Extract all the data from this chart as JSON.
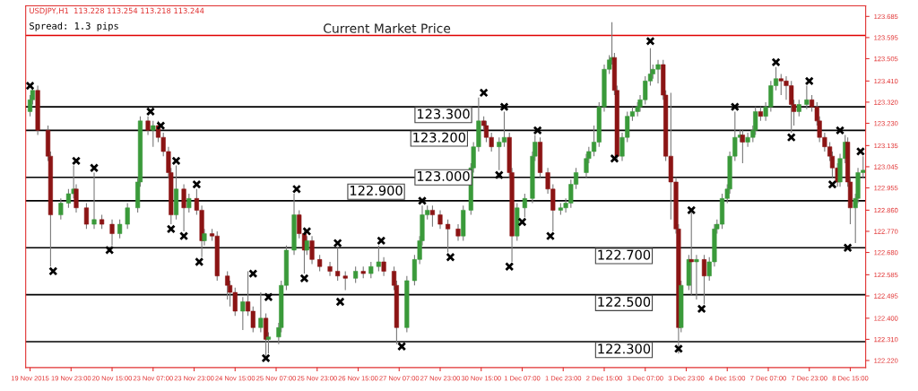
{
  "chart_data": {
    "type": "candlestick",
    "title": "USDJPY,H1  113.228 113.254 113.218 113.244",
    "subtitle": "Spread: 1.3 pips",
    "categories": [
      "19 Nov 2015",
      null,
      null,
      null,
      null,
      null,
      null,
      null,
      null,
      null,
      null,
      null,
      null,
      null,
      null,
      null,
      "19 Nov 23:00",
      null,
      null,
      null,
      null,
      null,
      null,
      null,
      null,
      null,
      null,
      null,
      null,
      null,
      null,
      null,
      "20 Nov 15:00",
      null,
      null,
      null,
      null,
      null,
      null,
      null,
      null,
      null,
      null,
      null,
      null,
      null,
      null,
      null,
      "23 Nov 07:00",
      null,
      null,
      null,
      null,
      null,
      null,
      null,
      null,
      null,
      null,
      null,
      null,
      null,
      null,
      null,
      "23 Nov 23:00",
      null,
      null,
      null,
      null,
      null,
      null,
      null,
      null,
      null,
      null,
      null,
      null,
      null,
      null,
      null,
      "24 Nov 15:00",
      null,
      null,
      null,
      null,
      null,
      null,
      null,
      null,
      null,
      null,
      null,
      null,
      null,
      null,
      null,
      "25 Nov 07:00",
      null,
      null,
      null,
      null,
      null,
      null,
      null,
      null,
      null,
      null,
      null,
      null,
      null,
      null,
      null,
      "25 Nov 23:00",
      null,
      null,
      null,
      null,
      null,
      null,
      null,
      null,
      null,
      null,
      null,
      null,
      null,
      null,
      null,
      "26 Nov 15:00",
      null,
      null,
      null,
      null,
      null,
      null,
      null,
      null,
      null,
      null,
      null,
      null,
      null,
      null,
      null,
      "27 Nov 07:00",
      null,
      null,
      null,
      null,
      null,
      null,
      null,
      null,
      null,
      null,
      null,
      null,
      null,
      null,
      null,
      "27 Nov 23:00",
      null,
      null,
      null,
      null,
      null,
      null,
      null,
      null,
      null,
      null,
      null,
      null,
      null,
      null,
      null,
      "30 Nov 15:00",
      null,
      null,
      null,
      null,
      null,
      null,
      null,
      null,
      null,
      null,
      null,
      null,
      null,
      null,
      null,
      "1 Dec 07:00",
      null,
      null,
      null,
      null,
      null,
      null,
      null,
      null,
      null,
      null,
      null,
      null,
      null,
      null,
      null,
      "1 Dec 23:00",
      null,
      null,
      null,
      null,
      null,
      null,
      null,
      null,
      null,
      null,
      null,
      null,
      null,
      null,
      null,
      "2 Dec 15:00",
      null,
      null,
      null,
      null,
      null,
      null,
      null,
      null,
      null,
      null,
      null,
      null,
      null,
      null,
      null,
      "3 Dec 07:00",
      null,
      null,
      null,
      null,
      null,
      null,
      null,
      null,
      null,
      null,
      null,
      null,
      null,
      null,
      null,
      "3 Dec 23:00",
      null,
      null,
      null,
      null,
      null,
      null,
      null,
      null,
      null,
      null,
      null,
      null,
      null,
      null,
      null,
      "4 Dec 15:00",
      null,
      null,
      null,
      null,
      null,
      null,
      null,
      null,
      null,
      null,
      null,
      null,
      null,
      null,
      null,
      "7 Dec 07:00",
      null,
      null,
      null,
      null,
      null,
      null,
      null,
      null,
      null,
      null,
      null,
      null,
      null,
      null,
      null,
      "7 Dec 23:00",
      null,
      null,
      null,
      null,
      null,
      null,
      null,
      null,
      null,
      null,
      null,
      null,
      null,
      null,
      null,
      "8 Dec 15:00",
      null,
      null,
      null,
      null,
      null
    ],
    "ohlc": [
      [
        123.28,
        123.35,
        123.26,
        123.33
      ],
      [
        123.33,
        123.38,
        123.31,
        123.37
      ],
      null,
      [
        123.37,
        123.39,
        123.18,
        123.2
      ],
      null,
      null,
      null,
      [
        123.2,
        123.22,
        123.07,
        123.09
      ],
      [
        123.09,
        123.11,
        122.62,
        122.84
      ],
      null,
      null,
      null,
      [
        122.84,
        122.91,
        122.82,
        122.89
      ],
      null,
      null,
      [
        122.89,
        122.95,
        122.87,
        122.93
      ],
      null,
      [
        122.93,
        123.05,
        122.91,
        122.95
      ],
      [
        122.95,
        122.97,
        122.85,
        122.87
      ],
      null,
      null,
      null,
      [
        122.87,
        122.89,
        122.78,
        122.8
      ],
      null,
      null,
      [
        122.8,
        123.02,
        122.78,
        122.82
      ],
      null,
      null,
      [
        122.82,
        122.84,
        122.78,
        122.8
      ],
      null,
      null,
      null,
      [
        122.8,
        122.82,
        122.71,
        122.76
      ],
      null,
      null,
      [
        122.76,
        122.82,
        122.74,
        122.8
      ],
      null,
      null,
      [
        122.8,
        122.89,
        122.78,
        122.87
      ],
      null,
      null,
      null,
      [
        122.87,
        123.0,
        122.85,
        122.98
      ],
      [
        122.98,
        123.26,
        122.96,
        123.24
      ],
      null,
      null,
      [
        123.24,
        123.26,
        123.18,
        123.2
      ],
      null,
      [
        123.2,
        123.24,
        123.13,
        123.22
      ],
      null,
      [
        123.22,
        123.24,
        123.15,
        123.17
      ],
      null,
      [
        123.17,
        123.19,
        123.09,
        123.11
      ],
      null,
      [
        123.11,
        123.13,
        123.0,
        123.02
      ],
      [
        123.02,
        123.04,
        122.8,
        122.84
      ],
      null,
      [
        122.84,
        123.05,
        122.82,
        122.95
      ],
      null,
      null,
      [
        122.95,
        122.97,
        122.77,
        122.87
      ],
      null,
      [
        122.87,
        122.93,
        122.85,
        122.91
      ],
      null,
      null,
      [
        122.91,
        122.95,
        122.84,
        122.86
      ],
      null,
      [
        122.86,
        122.88,
        122.66,
        122.73
      ],
      [
        122.73,
        122.78,
        122.71,
        122.76
      ],
      null,
      null,
      [
        122.76,
        122.78,
        122.73,
        122.75
      ],
      null,
      [
        122.75,
        122.77,
        122.56,
        122.58
      ],
      null,
      null,
      null,
      [
        122.58,
        122.6,
        122.48,
        122.54
      ],
      [
        122.54,
        122.56,
        122.45,
        122.51
      ],
      null,
      [
        122.51,
        122.53,
        122.41,
        122.43
      ],
      null,
      null,
      [
        122.43,
        122.49,
        122.35,
        122.47
      ],
      null,
      [
        122.47,
        122.6,
        122.41,
        122.43
      ],
      null,
      [
        122.43,
        122.45,
        122.34,
        122.36
      ],
      null,
      null,
      [
        122.36,
        122.51,
        122.34,
        122.4
      ],
      null,
      [
        122.4,
        122.42,
        122.24,
        122.31
      ],
      [
        122.31,
        122.34,
        122.25,
        122.32
      ],
      null,
      null,
      null,
      [
        122.32,
        122.38,
        122.29,
        122.36
      ],
      [
        122.36,
        122.56,
        122.34,
        122.54
      ],
      null,
      [
        122.54,
        122.71,
        122.52,
        122.69
      ],
      null,
      null,
      [
        122.69,
        122.93,
        122.67,
        122.84
      ],
      null,
      [
        122.84,
        122.86,
        122.74,
        122.76
      ],
      null,
      [
        122.76,
        122.78,
        122.59,
        122.69
      ],
      [
        122.69,
        122.75,
        122.67,
        122.73
      ],
      null,
      [
        122.73,
        122.75,
        122.63,
        122.65
      ],
      null,
      null,
      [
        122.65,
        122.67,
        122.6,
        122.62
      ],
      null,
      null,
      null,
      [
        122.62,
        122.64,
        122.58,
        122.6
      ],
      null,
      null,
      [
        122.6,
        122.7,
        122.56,
        122.58
      ],
      null,
      null,
      [
        122.58,
        122.6,
        122.52,
        122.57
      ],
      null,
      null,
      null,
      [
        122.57,
        122.62,
        122.55,
        122.6
      ],
      null,
      null,
      [
        122.6,
        122.62,
        122.57,
        122.59
      ],
      null,
      null,
      [
        122.59,
        122.64,
        122.57,
        122.62
      ],
      null,
      null,
      [
        122.62,
        122.71,
        122.6,
        122.64
      ],
      null,
      [
        122.64,
        122.66,
        122.58,
        122.6
      ],
      null,
      null,
      null,
      [
        122.6,
        122.62,
        122.52,
        122.54
      ],
      [
        122.54,
        122.56,
        122.29,
        122.36
      ],
      null,
      null,
      null,
      [
        122.36,
        122.58,
        122.34,
        122.56
      ],
      null,
      null,
      [
        122.56,
        122.67,
        122.54,
        122.65
      ],
      null,
      [
        122.65,
        122.75,
        122.63,
        122.73
      ],
      [
        122.73,
        122.88,
        122.71,
        122.84
      ],
      null,
      [
        122.84,
        122.88,
        122.82,
        122.86
      ],
      null,
      [
        122.86,
        122.88,
        122.79,
        122.84
      ],
      null,
      null,
      [
        122.84,
        122.86,
        122.78,
        122.8
      ],
      null,
      null,
      [
        122.8,
        122.82,
        122.68,
        122.78
      ],
      null,
      null,
      null,
      [
        122.78,
        122.8,
        122.73,
        122.75
      ],
      null,
      [
        122.75,
        122.88,
        122.73,
        122.86
      ],
      null,
      null,
      [
        122.86,
        123.06,
        122.84,
        123.04
      ],
      [
        123.04,
        123.15,
        123.02,
        123.13
      ],
      null,
      [
        123.13,
        123.34,
        123.11,
        123.24
      ],
      null,
      [
        123.24,
        123.26,
        123.2,
        123.22
      ],
      [
        123.22,
        123.24,
        123.15,
        123.17
      ],
      null,
      [
        123.17,
        123.19,
        123.11,
        123.13
      ],
      null,
      null,
      [
        123.13,
        123.17,
        123.03,
        123.15
      ],
      null,
      [
        123.15,
        123.28,
        123.13,
        123.17
      ],
      null,
      [
        123.17,
        123.19,
        123.0,
        123.02
      ],
      [
        123.02,
        123.04,
        122.64,
        122.75
      ],
      null,
      [
        122.75,
        122.89,
        122.73,
        122.87
      ],
      null,
      null,
      [
        122.87,
        122.93,
        122.83,
        122.91
      ],
      null,
      null,
      [
        122.91,
        123.11,
        122.89,
        123.09
      ],
      [
        123.09,
        123.18,
        123.07,
        123.15
      ],
      null,
      [
        123.15,
        123.17,
        123.0,
        123.02
      ],
      null,
      null,
      [
        123.02,
        123.04,
        122.93,
        122.95
      ],
      null,
      [
        122.95,
        122.97,
        122.77,
        122.86
      ],
      null,
      null,
      [
        122.86,
        122.89,
        122.84,
        122.87
      ],
      null,
      [
        122.87,
        122.91,
        122.85,
        122.89
      ],
      null,
      [
        122.89,
        122.99,
        122.87,
        122.97
      ],
      null,
      [
        122.97,
        123.04,
        122.95,
        123.02
      ],
      null,
      null,
      null,
      [
        123.02,
        123.1,
        123.0,
        123.08
      ],
      [
        123.08,
        123.13,
        123.06,
        123.11
      ],
      null,
      [
        123.11,
        123.22,
        123.09,
        123.15
      ],
      null,
      [
        123.15,
        123.32,
        123.13,
        123.3
      ],
      null,
      [
        123.3,
        123.48,
        123.28,
        123.46
      ],
      null,
      [
        123.46,
        123.52,
        123.44,
        123.5
      ],
      [
        123.5,
        123.66,
        123.48,
        123.51
      ],
      [
        123.51,
        123.53,
        123.35,
        123.37
      ],
      [
        123.37,
        123.39,
        123.07,
        123.09
      ],
      null,
      [
        123.09,
        123.19,
        123.07,
        123.17
      ],
      null,
      [
        123.17,
        123.28,
        123.15,
        123.26
      ],
      null,
      [
        123.26,
        123.3,
        123.24,
        123.28
      ],
      null,
      [
        123.28,
        123.32,
        123.26,
        123.3
      ],
      [
        123.3,
        123.35,
        123.28,
        123.33
      ],
      null,
      [
        123.33,
        123.43,
        123.31,
        123.41
      ],
      null,
      [
        123.41,
        123.55,
        123.39,
        123.44
      ],
      [
        123.44,
        123.48,
        123.42,
        123.46
      ],
      null,
      [
        123.46,
        123.5,
        123.4,
        123.48
      ],
      null,
      [
        123.48,
        123.5,
        123.33,
        123.35
      ],
      [
        123.35,
        123.37,
        123.07,
        123.09
      ],
      null,
      [
        123.09,
        123.36,
        122.82,
        122.98
      ],
      null,
      [
        122.98,
        123.0,
        122.76,
        122.78
      ],
      [
        122.78,
        122.8,
        122.25,
        122.36
      ],
      [
        122.36,
        122.56,
        122.34,
        122.54
      ],
      null,
      null,
      [
        122.54,
        122.67,
        122.52,
        122.65
      ],
      [
        122.65,
        122.85,
        122.5,
        122.64
      ],
      null,
      [
        122.64,
        122.67,
        122.48,
        122.65
      ],
      null,
      null,
      [
        122.65,
        122.67,
        122.46,
        122.58
      ],
      null,
      [
        122.58,
        122.66,
        122.56,
        122.64
      ],
      null,
      [
        122.64,
        122.8,
        122.62,
        122.78
      ],
      [
        122.78,
        122.82,
        122.76,
        122.8
      ],
      null,
      [
        122.8,
        122.93,
        122.78,
        122.91
      ],
      null,
      [
        122.91,
        122.97,
        122.89,
        122.95
      ],
      [
        122.95,
        123.11,
        122.93,
        123.09
      ],
      null,
      [
        123.09,
        123.28,
        123.07,
        123.17
      ],
      null,
      [
        123.17,
        123.2,
        123.15,
        123.18
      ],
      [
        123.18,
        123.2,
        123.06,
        123.15
      ],
      null,
      [
        123.15,
        123.19,
        123.13,
        123.17
      ],
      null,
      [
        123.17,
        123.22,
        123.15,
        123.2
      ],
      [
        123.2,
        123.3,
        123.18,
        123.28
      ],
      null,
      [
        123.28,
        123.3,
        123.24,
        123.26
      ],
      null,
      [
        123.26,
        123.32,
        123.24,
        123.3
      ],
      null,
      [
        123.3,
        123.41,
        123.28,
        123.39
      ],
      null,
      [
        123.39,
        123.47,
        123.37,
        123.42
      ],
      null,
      [
        123.42,
        123.44,
        123.35,
        123.41
      ],
      null,
      [
        123.41,
        123.43,
        123.33,
        123.39
      ],
      null,
      [
        123.39,
        123.41,
        123.19,
        123.31
      ],
      [
        123.31,
        123.33,
        123.22,
        123.28
      ],
      null,
      [
        123.28,
        123.33,
        123.26,
        123.31
      ],
      null,
      null,
      [
        123.31,
        123.39,
        123.29,
        123.33
      ],
      null,
      [
        123.33,
        123.35,
        123.28,
        123.3
      ],
      null,
      [
        123.3,
        123.32,
        123.22,
        123.24
      ],
      [
        123.24,
        123.26,
        123.15,
        123.17
      ],
      null,
      [
        123.17,
        123.19,
        123.11,
        123.13
      ],
      null,
      [
        123.13,
        123.15,
        123.07,
        123.09
      ],
      [
        123.09,
        123.11,
        123.0,
        123.04
      ],
      null,
      [
        123.04,
        123.06,
        122.96,
        122.98
      ],
      [
        122.98,
        123.1,
        122.96,
        123.08
      ],
      null,
      [
        123.08,
        123.18,
        123.06,
        123.15
      ],
      [
        123.15,
        123.17,
        122.96,
        122.98
      ],
      [
        122.98,
        123.0,
        122.8,
        122.87
      ],
      null,
      [
        122.87,
        122.93,
        122.72,
        122.91
      ],
      [
        122.91,
        123.04,
        122.89,
        123.02
      ],
      null,
      [
        123.02,
        123.09,
        123.0,
        123.03
      ]
    ],
    "series": [
      {
        "type": "scatter",
        "marker": "cross",
        "color": "#000000",
        "values": [
          123.39,
          null,
          null,
          null,
          null,
          null,
          null,
          null,
          null,
          122.6,
          null,
          null,
          null,
          null,
          null,
          null,
          null,
          null,
          123.07,
          null,
          null,
          null,
          null,
          null,
          null,
          123.04,
          null,
          null,
          null,
          null,
          null,
          122.69,
          null,
          null,
          null,
          null,
          null,
          null,
          null,
          null,
          null,
          null,
          null,
          null,
          null,
          null,
          null,
          123.28,
          null,
          null,
          null,
          123.22,
          null,
          null,
          null,
          122.78,
          null,
          123.07,
          null,
          null,
          122.75,
          null,
          null,
          null,
          null,
          122.97,
          122.64,
          null,
          null,
          null,
          null,
          null,
          null,
          null,
          null,
          null,
          null,
          null,
          null,
          null,
          null,
          null,
          null,
          null,
          null,
          null,
          null,
          122.59,
          null,
          null,
          null,
          null,
          122.23,
          122.49,
          null,
          null,
          null,
          null,
          null,
          null,
          null,
          null,
          null,
          null,
          122.95,
          null,
          null,
          122.57,
          122.77,
          null,
          null,
          null,
          null,
          null,
          null,
          null,
          null,
          null,
          null,
          null,
          122.72,
          122.47,
          null,
          null,
          null,
          null,
          null,
          null,
          null,
          null,
          null,
          null,
          null,
          null,
          null,
          null,
          null,
          122.73,
          null,
          null,
          null,
          null,
          null,
          null,
          null,
          122.28,
          null,
          null,
          null,
          null,
          null,
          null,
          null,
          122.9,
          null,
          null,
          null,
          null,
          null,
          null,
          null,
          null,
          null,
          null,
          122.66,
          null,
          null,
          null,
          null,
          null,
          null,
          null,
          null,
          null,
          null,
          null,
          null,
          123.36,
          null,
          null,
          null,
          null,
          null,
          123.01,
          null,
          123.3,
          null,
          122.62,
          null,
          null,
          null,
          null,
          122.81,
          null,
          null,
          null,
          null,
          null,
          123.2,
          null,
          null,
          null,
          null,
          122.75,
          null,
          null,
          null,
          null,
          null,
          null,
          null,
          null,
          null,
          null,
          null,
          null,
          null,
          null,
          null,
          null,
          null,
          null,
          null,
          null,
          null,
          null,
          null,
          null,
          123.08,
          null,
          null,
          null,
          null,
          null,
          null,
          null,
          null,
          null,
          null,
          null,
          null,
          null,
          123.58,
          null,
          null,
          null,
          null,
          null,
          null,
          null,
          null,
          null,
          null,
          122.27,
          null,
          null,
          null,
          null,
          122.86,
          null,
          null,
          null,
          122.44,
          null,
          null,
          null,
          null,
          null,
          null,
          null,
          null,
          null,
          null,
          null,
          null,
          123.3,
          null,
          null,
          null,
          null,
          null,
          null,
          null,
          null,
          null,
          null,
          null,
          null,
          null,
          null,
          null,
          123.49,
          null,
          null,
          null,
          null,
          null,
          123.17,
          null,
          null,
          null,
          null,
          null,
          null,
          123.41,
          null,
          null,
          null,
          null,
          null,
          null,
          null,
          null,
          122.97,
          null,
          null,
          123.2,
          null,
          null,
          122.7,
          null,
          null,
          null,
          null,
          123.11,
          null
        ]
      }
    ],
    "ref_lines": [
      {
        "axis": "y",
        "value": 123.604,
        "label": "Current Market Price",
        "color": "#e00000"
      },
      {
        "axis": "y",
        "value": 123.3,
        "label": "123.300",
        "color": "#000000"
      },
      {
        "axis": "y",
        "value": 123.2,
        "label": "123.200",
        "color": "#000000"
      },
      {
        "axis": "y",
        "value": 123.0,
        "label": "123.000",
        "color": "#000000"
      },
      {
        "axis": "y",
        "value": 122.9,
        "label": "122.900",
        "color": "#000000"
      },
      {
        "axis": "y",
        "value": 122.7,
        "label": "122.700",
        "color": "#000000"
      },
      {
        "axis": "y",
        "value": 122.5,
        "label": "122.500",
        "color": "#000000"
      },
      {
        "axis": "y",
        "value": 122.3,
        "label": "122.300",
        "color": "#000000"
      }
    ],
    "ylim": [
      122.19,
      123.73
    ],
    "yticks": [
      123.685,
      123.595,
      123.505,
      {
        "value": 123.41,
        "label": "123.410"
      },
      {
        "value": 123.32,
        "label": "123.320"
      },
      {
        "value": 123.23,
        "label": "123.230"
      },
      123.135,
      123.045,
      122.955,
      {
        "value": 122.86,
        "label": "122.860"
      },
      {
        "value": 122.77,
        "label": "122.770"
      },
      {
        "value": 122.68,
        "label": "122.680"
      },
      122.585,
      122.495,
      {
        "value": 122.4,
        "label": "122.400"
      },
      {
        "value": 122.31,
        "label": "122.310"
      },
      {
        "value": 122.22,
        "label": "122.220"
      }
    ],
    "grid": false,
    "legend": false
  }
}
